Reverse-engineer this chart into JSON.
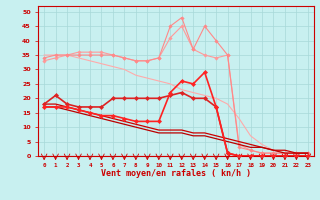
{
  "background_color": "#c8f0f0",
  "grid_color": "#a8d8d8",
  "xlabel": "Vent moyen/en rafales ( kn/h )",
  "xlabel_color": "#cc0000",
  "xlabel_fontsize": 6,
  "tick_color": "#cc0000",
  "xlim": [
    -0.5,
    23.5
  ],
  "ylim": [
    0,
    52
  ],
  "lines": [
    {
      "x": [
        0,
        1,
        2,
        3,
        4,
        5,
        6,
        7,
        8,
        9,
        10,
        11,
        12,
        13,
        14,
        15,
        16,
        17,
        18,
        19,
        20,
        21,
        22,
        23
      ],
      "y": [
        35,
        35,
        35,
        34,
        33,
        32,
        31,
        30,
        28,
        27,
        26,
        25,
        23,
        22,
        21,
        20,
        18,
        13,
        7,
        4,
        2,
        1,
        1,
        1
      ],
      "color": "#ffaaaa",
      "linewidth": 0.8,
      "marker": null,
      "markersize": 0,
      "zorder": 2
    },
    {
      "x": [
        0,
        1,
        2,
        3,
        4,
        5,
        6,
        7,
        8,
        9,
        10,
        11,
        12,
        13,
        14,
        15,
        16,
        17,
        18,
        19,
        20,
        21,
        22,
        23
      ],
      "y": [
        33,
        34,
        35,
        36,
        36,
        36,
        35,
        34,
        33,
        33,
        34,
        41,
        45,
        37,
        35,
        34,
        35,
        4,
        2,
        1,
        1,
        1,
        1,
        1
      ],
      "color": "#ff9999",
      "linewidth": 0.8,
      "marker": "D",
      "markersize": 1.8,
      "zorder": 3
    },
    {
      "x": [
        0,
        1,
        2,
        3,
        4,
        5,
        6,
        7,
        8,
        9,
        10,
        11,
        12,
        13,
        14,
        15,
        16,
        17,
        18,
        19,
        20,
        21,
        22,
        23
      ],
      "y": [
        34,
        35,
        35,
        35,
        35,
        35,
        35,
        34,
        33,
        33,
        34,
        45,
        48,
        37,
        45,
        40,
        35,
        3,
        2,
        1,
        1,
        1,
        1,
        1
      ],
      "color": "#ff8888",
      "linewidth": 0.8,
      "marker": "D",
      "markersize": 1.8,
      "zorder": 3
    },
    {
      "x": [
        0,
        1,
        2,
        3,
        4,
        5,
        6,
        7,
        8,
        9,
        10,
        11,
        12,
        13,
        14,
        15,
        16,
        17,
        18,
        19,
        20,
        21,
        22,
        23
      ],
      "y": [
        18,
        18,
        17,
        16,
        15,
        14,
        13,
        12,
        11,
        10,
        9,
        9,
        9,
        8,
        8,
        7,
        6,
        5,
        4,
        3,
        2,
        2,
        1,
        1
      ],
      "color": "#cc0000",
      "linewidth": 0.9,
      "marker": null,
      "markersize": 0,
      "zorder": 4
    },
    {
      "x": [
        0,
        1,
        2,
        3,
        4,
        5,
        6,
        7,
        8,
        9,
        10,
        11,
        12,
        13,
        14,
        15,
        16,
        17,
        18,
        19,
        20,
        21,
        22,
        23
      ],
      "y": [
        17,
        17,
        16,
        15,
        14,
        13,
        12,
        11,
        10,
        9,
        8,
        8,
        8,
        7,
        7,
        6,
        5,
        4,
        3,
        3,
        2,
        1,
        1,
        1
      ],
      "color": "#bb0000",
      "linewidth": 0.9,
      "marker": null,
      "markersize": 0,
      "zorder": 4
    },
    {
      "x": [
        0,
        1,
        2,
        3,
        4,
        5,
        6,
        7,
        8,
        9,
        10,
        11,
        12,
        13,
        14,
        15,
        16,
        17,
        18,
        19,
        20,
        21,
        22,
        23
      ],
      "y": [
        18,
        21,
        18,
        17,
        17,
        17,
        20,
        20,
        20,
        20,
        20,
        21,
        22,
        20,
        20,
        17,
        1,
        0,
        0,
        0,
        0,
        0,
        0,
        0
      ],
      "color": "#dd2222",
      "linewidth": 1.2,
      "marker": "D",
      "markersize": 2.2,
      "zorder": 5
    },
    {
      "x": [
        0,
        1,
        2,
        3,
        4,
        5,
        6,
        7,
        8,
        9,
        10,
        11,
        12,
        13,
        14,
        15,
        16,
        17,
        18,
        19,
        20,
        21,
        22,
        23
      ],
      "y": [
        17,
        17,
        17,
        16,
        15,
        14,
        14,
        13,
        12,
        12,
        12,
        22,
        26,
        25,
        29,
        17,
        1,
        0,
        0,
        0,
        0,
        0,
        0,
        0
      ],
      "color": "#ff2222",
      "linewidth": 1.2,
      "marker": "D",
      "markersize": 2.2,
      "zorder": 5
    }
  ]
}
